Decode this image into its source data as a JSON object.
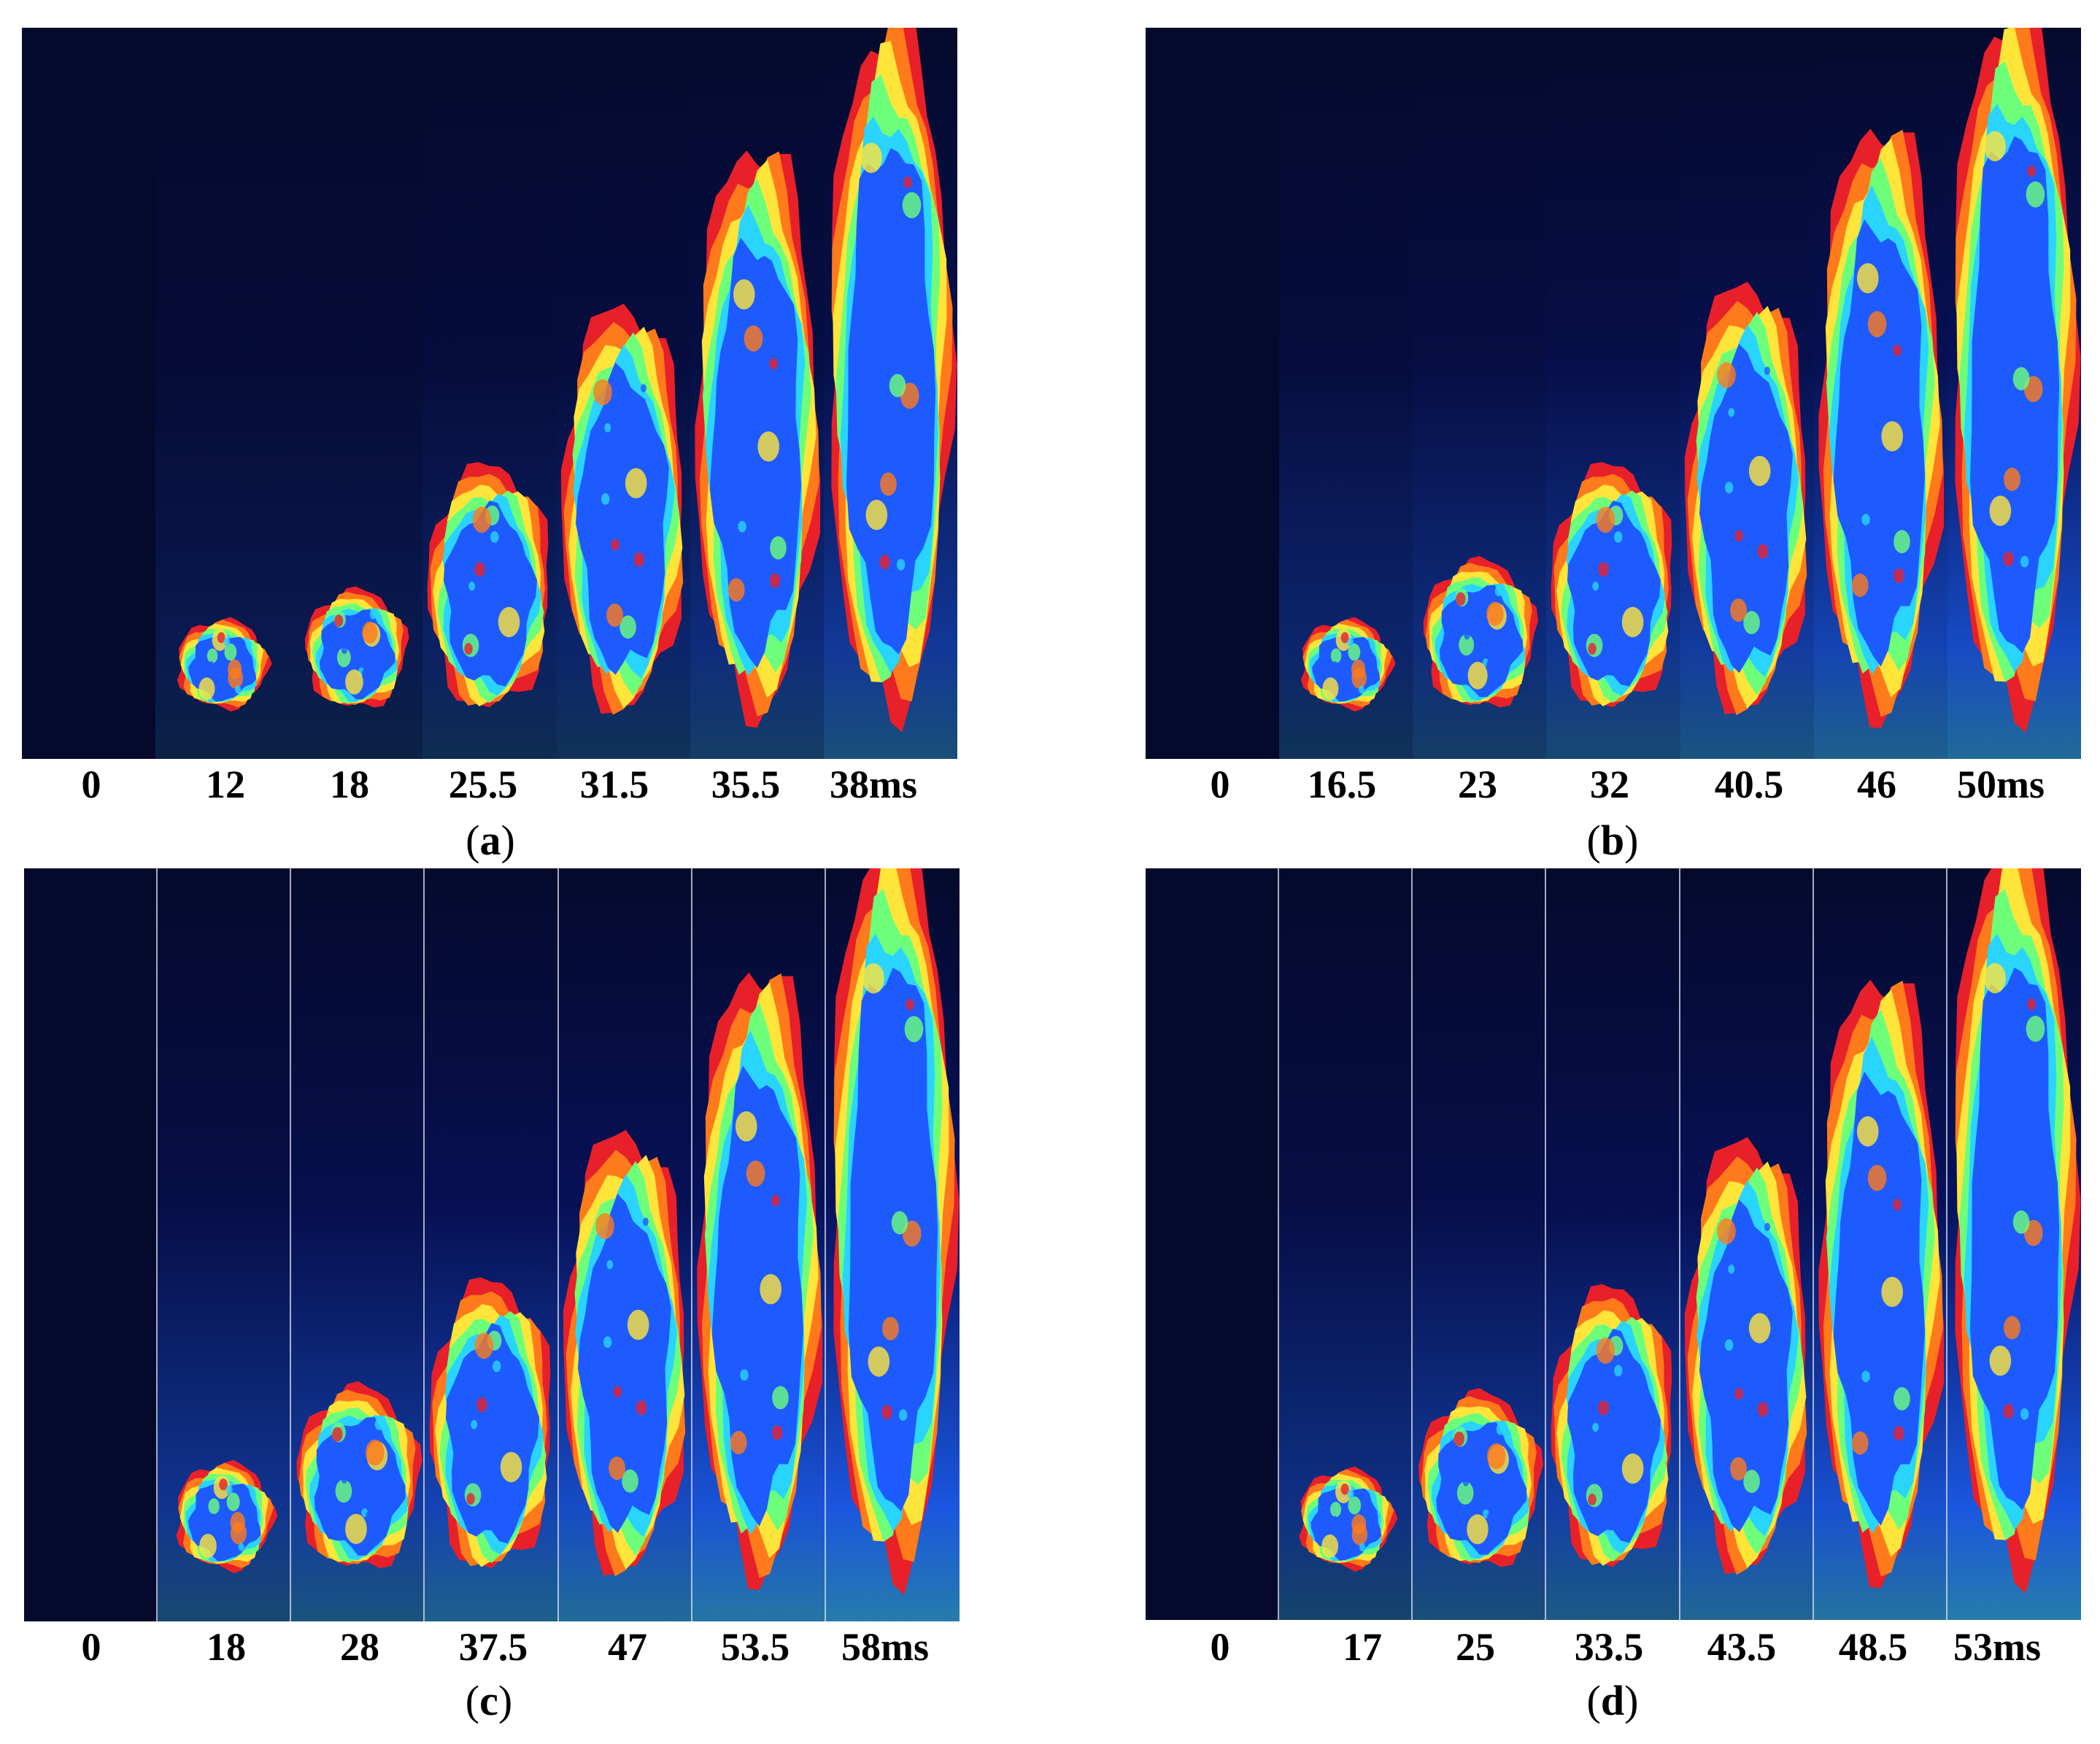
{
  "panels": [
    {
      "letter": "a",
      "dark_columns": false,
      "times": [
        "0",
        "12",
        "18",
        "25.5",
        "31.5",
        "35.5",
        "38ms"
      ],
      "flame_height": [
        0.0,
        0.12,
        0.16,
        0.33,
        0.55,
        0.77,
        0.94
      ],
      "background_glow": [
        0.0,
        0.2,
        0.2,
        0.3,
        0.35,
        0.45,
        0.6
      ]
    },
    {
      "letter": "b",
      "dark_columns": false,
      "times": [
        "0",
        "16.5",
        "23",
        "32",
        "40.5",
        "46",
        "50ms"
      ],
      "flame_height": [
        0.0,
        0.12,
        0.2,
        0.33,
        0.58,
        0.8,
        0.96
      ],
      "background_glow": [
        0.0,
        0.35,
        0.45,
        0.55,
        0.65,
        0.75,
        0.85
      ]
    },
    {
      "letter": "c",
      "dark_columns": true,
      "times": [
        "0",
        "18",
        "28",
        "37.5",
        "47",
        "53.5",
        "58ms"
      ],
      "flame_height": [
        0.0,
        0.14,
        0.24,
        0.38,
        0.58,
        0.8,
        0.98
      ],
      "background_glow": [
        0.0,
        0.55,
        0.65,
        0.75,
        0.85,
        0.95,
        1.0
      ]
    },
    {
      "letter": "d",
      "dark_columns": true,
      "times": [
        "0",
        "17",
        "25",
        "33.5",
        "43.5",
        "48.5",
        "53ms"
      ],
      "flame_height": [
        0.0,
        0.13,
        0.23,
        0.37,
        0.57,
        0.79,
        0.98
      ],
      "background_glow": [
        0.0,
        0.5,
        0.6,
        0.7,
        0.82,
        0.92,
        1.0
      ]
    }
  ],
  "colors": {
    "background": "#050a2c",
    "deep_blue": "#0a1aa0",
    "blue": "#1e5bff",
    "cyan": "#29d4ff",
    "green": "#6dff7a",
    "yellow": "#ffe53a",
    "orange": "#ff7a1a",
    "red": "#e8202a",
    "white": "#ffffff"
  }
}
